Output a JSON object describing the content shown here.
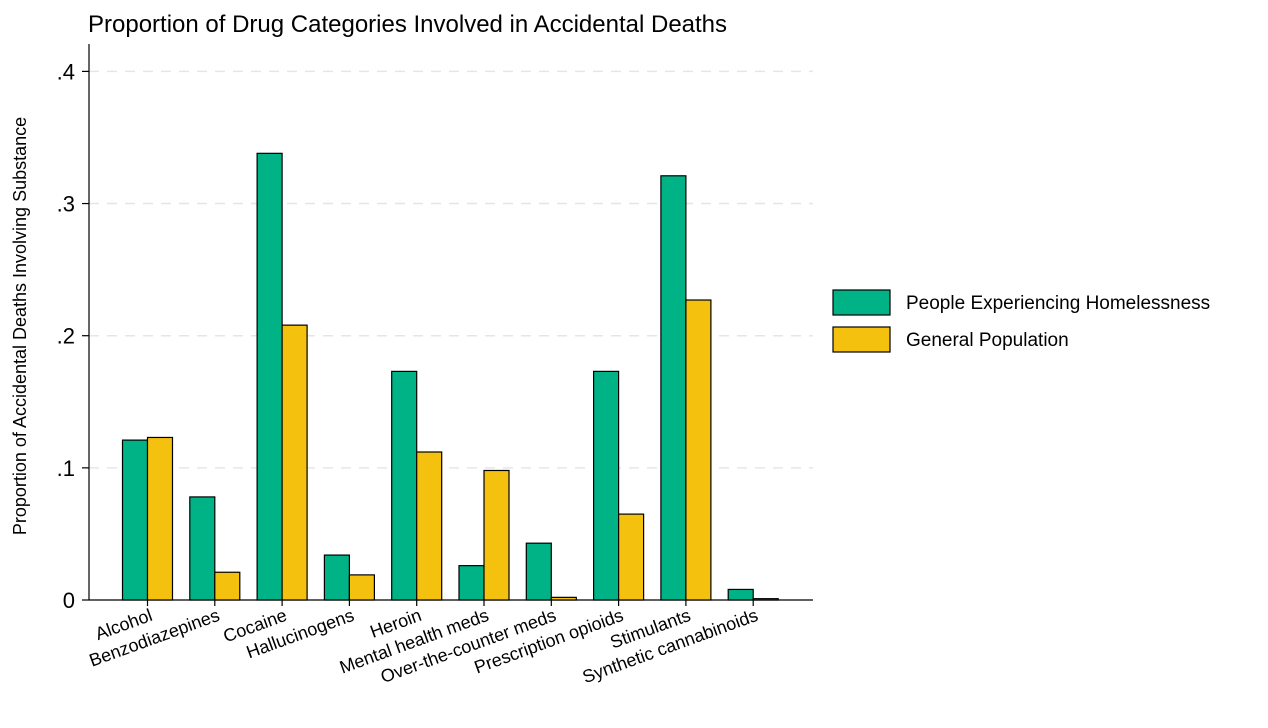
{
  "chart_data": {
    "type": "bar",
    "title": "Proportion of Drug Categories Involved in Accidental Deaths",
    "xlabel": "",
    "ylabel": "Proportion of Accidental Deaths Involving Substance",
    "ylim": [
      0,
      0.42
    ],
    "yticks": [
      0,
      0.1,
      0.2,
      0.3,
      0.4
    ],
    "ytick_labels": [
      "0",
      ".1",
      ".2",
      ".3",
      ".4"
    ],
    "grid": true,
    "legend_position": "right",
    "categories": [
      "Alcohol",
      "Benzodiazepines",
      "Cocaine",
      "Hallucinogens",
      "Heroin",
      "Mental health meds",
      "Over-the-counter meds",
      "Prescription opioids",
      "Stimulants",
      "Synthetic cannabinoids"
    ],
    "series": [
      {
        "name": "People Experiencing Homelessness",
        "color": "#00b386",
        "values": [
          0.121,
          0.078,
          0.338,
          0.034,
          0.173,
          0.026,
          0.043,
          0.173,
          0.321,
          0.008
        ]
      },
      {
        "name": "General Population",
        "color": "#f4c10f",
        "values": [
          0.123,
          0.021,
          0.208,
          0.019,
          0.112,
          0.098,
          0.002,
          0.065,
          0.227,
          0.001
        ]
      }
    ]
  }
}
